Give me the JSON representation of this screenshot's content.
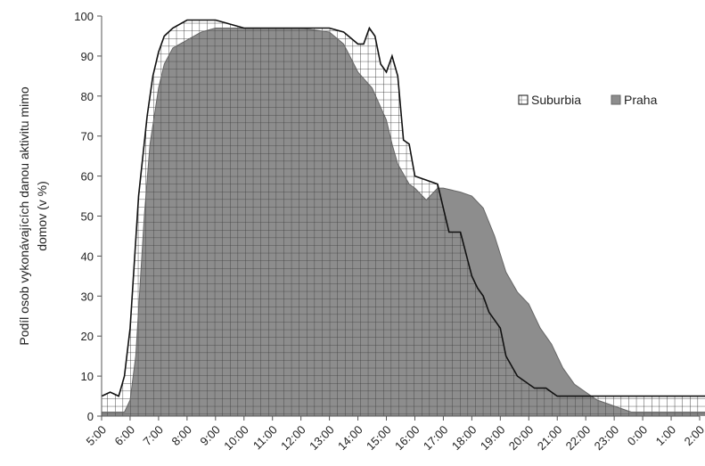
{
  "chart_data": {
    "type": "area",
    "ylabel_lines": [
      "Podíl osob vykonávajících danou aktivitu mimo",
      "domov (v %)"
    ],
    "xlabel": "",
    "ylim": [
      0,
      100
    ],
    "yticks": [
      0,
      10,
      20,
      30,
      40,
      50,
      60,
      70,
      80,
      90,
      100
    ],
    "xticks": [
      "5:00",
      "6:00",
      "7:00",
      "8:00",
      "9:00",
      "10:00",
      "11:00",
      "12:00",
      "13:00",
      "14:00",
      "15:00",
      "16:00",
      "17:00",
      "18:00",
      "19:00",
      "20:00",
      "21:00",
      "22:00",
      "23:00",
      "0:00",
      "1:00",
      "2:00"
    ],
    "grid": false,
    "legend_position": "right",
    "series": [
      {
        "name": "Suburbia",
        "fill": "crosshatch",
        "x": [
          0,
          0.3,
          0.6,
          0.8,
          1.0,
          1.3,
          1.6,
          1.8,
          2.0,
          2.2,
          2.5,
          3.0,
          3.3,
          3.5,
          4.0,
          4.5,
          5.0,
          6.0,
          7.0,
          8.0,
          8.5,
          9.0,
          9.2,
          9.4,
          9.6,
          9.8,
          10.0,
          10.2,
          10.4,
          10.6,
          10.8,
          11.0,
          11.4,
          11.8,
          12.2,
          12.6,
          13.0,
          13.2,
          13.4,
          13.6,
          13.8,
          14.0,
          14.2,
          14.6,
          15.0,
          15.2,
          15.6,
          16.0,
          16.5,
          17.0,
          17.5,
          18.0,
          19.0,
          20.0,
          21.0,
          21.5
        ],
        "values": [
          5,
          6,
          5,
          10,
          22,
          55,
          75,
          85,
          91,
          95,
          97,
          99,
          99,
          99,
          99,
          98,
          97,
          97,
          97,
          97,
          96,
          93,
          93,
          97,
          95,
          88,
          86,
          90,
          85,
          69,
          68,
          60,
          59,
          58,
          46,
          46,
          35,
          32,
          30,
          26,
          24,
          22,
          15,
          10,
          8,
          7,
          7,
          5,
          5,
          5,
          5,
          5,
          5,
          5,
          5,
          5
        ]
      },
      {
        "name": "Praha",
        "fill": "solid",
        "x": [
          0,
          0.4,
          0.8,
          1.0,
          1.2,
          1.5,
          1.7,
          2.0,
          2.2,
          2.5,
          3.0,
          3.5,
          4.0,
          4.5,
          5.0,
          6.0,
          7.0,
          8.0,
          8.5,
          9.0,
          9.5,
          10.0,
          10.2,
          10.4,
          10.8,
          11.0,
          11.4,
          11.8,
          12.0,
          12.6,
          13.0,
          13.4,
          13.8,
          14.2,
          14.6,
          15.0,
          15.4,
          15.8,
          16.2,
          16.6,
          17.0,
          17.4,
          17.8,
          18.2,
          18.6,
          19.0,
          19.5,
          20.0,
          21.0,
          21.5
        ],
        "values": [
          1,
          1,
          1,
          4,
          15,
          50,
          68,
          82,
          88,
          92,
          94,
          96,
          97,
          97,
          97,
          97,
          97,
          96,
          93,
          86,
          82,
          74,
          68,
          63,
          58,
          57,
          54,
          57,
          57,
          56,
          55,
          52,
          45,
          36,
          31,
          28,
          22,
          18,
          12,
          8,
          6,
          4,
          3,
          2,
          1,
          1,
          1,
          1,
          1,
          1
        ]
      }
    ]
  }
}
